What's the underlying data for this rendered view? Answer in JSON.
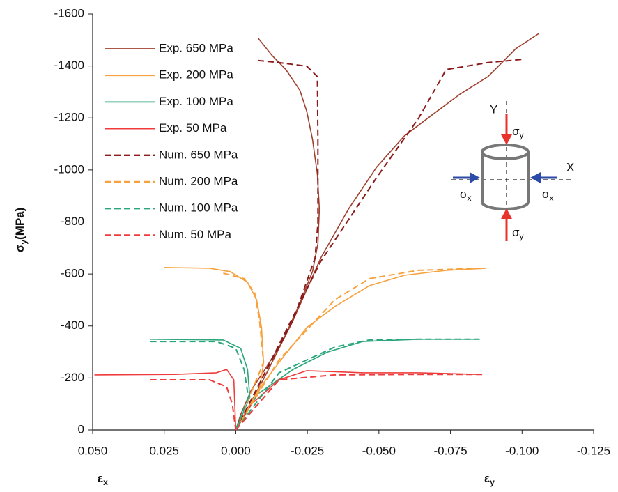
{
  "chart_data": {
    "type": "line",
    "y_label": {
      "symbol": "σ",
      "sub": "y",
      "unit": "(MPa)"
    },
    "x_labels": [
      {
        "symbol": "ε",
        "sub": "x"
      },
      {
        "symbol": "ε",
        "sub": "y"
      }
    ],
    "xlim": [
      0.05,
      -0.125
    ],
    "ylim": [
      0,
      -1600
    ],
    "xticks": [
      {
        "value": 0.05,
        "label": "0.050"
      },
      {
        "value": 0.025,
        "label": "0.025"
      },
      {
        "value": 0,
        "label": "0.000"
      },
      {
        "value": -0.025,
        "label": "-0.025"
      },
      {
        "value": -0.05,
        "label": "-0.050"
      },
      {
        "value": -0.075,
        "label": "-0.075"
      },
      {
        "value": -0.1,
        "label": "-0.100"
      },
      {
        "value": -0.125,
        "label": "-0.125"
      }
    ],
    "yticks": [
      0,
      -200,
      -400,
      -600,
      -800,
      -1000,
      -1200,
      -1400,
      -1600
    ],
    "legend": "upper left",
    "diagram": {
      "y_axis": "Y",
      "x_axis": "X",
      "sigma": "σ",
      "sub_x": "x",
      "sub_y": "y"
    },
    "series": [
      {
        "name": "Exp. 650 MPa",
        "color": "#a0402f",
        "dashed": false,
        "x": [
          0,
          -0.0017,
          -0.0054,
          -0.0102,
          -0.0163,
          -0.0219,
          -0.0268,
          -0.0287,
          -0.0292,
          -0.0285,
          -0.0268,
          -0.0248,
          -0.0224,
          -0.0175,
          -0.0127,
          -0.0078,
          null,
          0,
          -0.0102,
          -0.02,
          -0.0297,
          -0.0394,
          -0.0492,
          -0.0589,
          -0.0686,
          -0.0784,
          -0.0881,
          -0.0978,
          -0.1059
        ],
        "values": [
          0,
          -59,
          -153,
          -233,
          -340,
          -475,
          -609,
          -716,
          -850,
          -984,
          -1118,
          -1225,
          -1306,
          -1386,
          -1440,
          -1507,
          null,
          0,
          -206,
          -421,
          -662,
          -850,
          -1011,
          -1131,
          -1212,
          -1292,
          -1359,
          -1466,
          -1525
        ]
      },
      {
        "name": "Exp. 200 MPa",
        "color": "#f7a23e",
        "dashed": false,
        "x": [
          0.0251,
          0.0092,
          0.0019,
          -0.0041,
          -0.0073,
          -0.009,
          -0.0097,
          -0.0083,
          -0.0041,
          0,
          null,
          0,
          -0.0078,
          -0.0151,
          -0.0248,
          -0.0346,
          -0.0467,
          -0.0589,
          -0.0735,
          -0.0874
        ],
        "values": [
          -625,
          -622,
          -609,
          -568,
          -501,
          -394,
          -260,
          -153,
          -72,
          0,
          null,
          0,
          -153,
          -260,
          -394,
          -475,
          -555,
          -595,
          -614,
          -622
        ]
      },
      {
        "name": "Exp. 100 MPa",
        "color": "#2ba67a",
        "dashed": false,
        "x": [
          0.0299,
          0.0044,
          -0.0017,
          -0.0041,
          -0.0049,
          0,
          null,
          0,
          -0.0078,
          -0.02,
          -0.0321,
          -0.0443,
          -0.0638,
          -0.0852
        ],
        "values": [
          -349,
          -346,
          -314,
          -233,
          -126,
          0,
          null,
          0,
          -139,
          -233,
          -300,
          -340,
          -349,
          -349
        ]
      },
      {
        "name": "Exp. 50 MPa",
        "color": "#ef3b3b",
        "dashed": false,
        "x": [
          0.0494,
          0.0214,
          0.0068,
          0.0032,
          0.0007,
          0,
          null,
          0,
          -0.0054,
          -0.0151,
          -0.0248,
          -0.0443,
          -0.0638,
          -0.0847
        ],
        "values": [
          -212,
          -214,
          -220,
          -233,
          -193,
          0,
          null,
          0,
          -99,
          -193,
          -228,
          -220,
          -220,
          -214
        ]
      },
      {
        "name": "Num. 650 MPa",
        "color": "#8b1a1a",
        "dashed": true,
        "x": [
          0,
          -0.0102,
          -0.02,
          -0.0277,
          -0.0287,
          -0.0287,
          -0.0285,
          -0.0248,
          -0.0151,
          -0.0078,
          null,
          0,
          -0.0102,
          -0.0297,
          -0.0492,
          -0.0638,
          -0.0735,
          -0.0881,
          -0.1008
        ],
        "values": [
          0,
          -220,
          -421,
          -662,
          -796,
          -1118,
          -1359,
          -1399,
          -1413,
          -1421,
          null,
          0,
          -220,
          -649,
          -971,
          -1198,
          -1386,
          -1413,
          -1426
        ]
      },
      {
        "name": "Num. 200 MPa",
        "color": "#f7a23e",
        "dashed": true,
        "x": [
          0.0044,
          -0.0029,
          -0.0066,
          -0.0083,
          -0.0097,
          0,
          null,
          0,
          -0.0151,
          -0.0346,
          -0.0467,
          -0.0638,
          -0.0869
        ],
        "values": [
          -603,
          -582,
          -528,
          -421,
          -260,
          0,
          null,
          0,
          -270,
          -501,
          -582,
          -614,
          -622
        ]
      },
      {
        "name": "Num. 100 MPa",
        "color": "#2ba67a",
        "dashed": true,
        "x": [
          0.0299,
          0.0068,
          0,
          -0.0029,
          -0.0044,
          0,
          null,
          0,
          -0.0151,
          -0.0346,
          -0.0467,
          -0.0638,
          -0.0852
        ],
        "values": [
          -340,
          -340,
          -314,
          -233,
          -126,
          0,
          null,
          0,
          -220,
          -319,
          -346,
          -349,
          -349
        ]
      },
      {
        "name": "Num. 50 MPa",
        "color": "#ef3b3b",
        "dashed": true,
        "x": [
          0.0299,
          0.0092,
          0.0032,
          0.0012,
          0,
          null,
          0,
          -0.0151,
          -0.0346,
          -0.0638,
          -0.0874
        ],
        "values": [
          -193,
          -193,
          -166,
          -99,
          0,
          null,
          0,
          -193,
          -212,
          -214,
          -214
        ]
      }
    ]
  }
}
